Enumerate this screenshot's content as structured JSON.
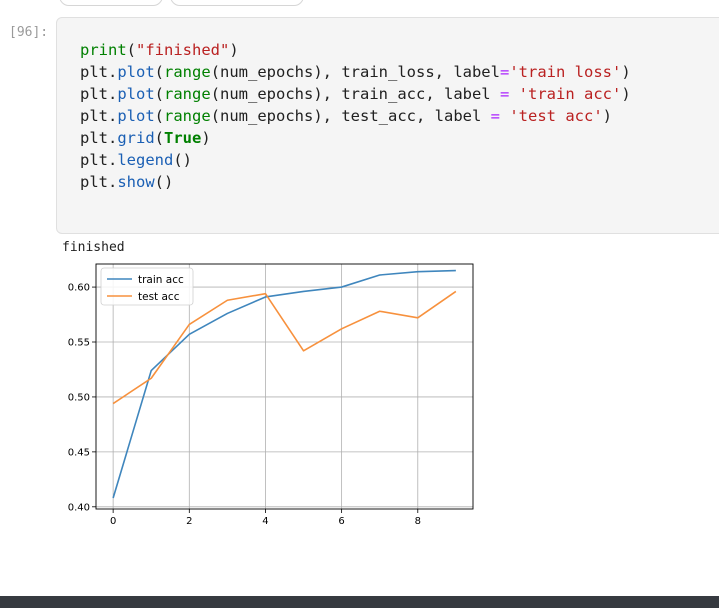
{
  "cell": {
    "prompt": "[96]:",
    "code_lines": [
      [
        {
          "t": "builtin",
          "v": "print"
        },
        {
          "t": "plain",
          "v": "("
        },
        {
          "t": "string",
          "v": "\"finished\""
        },
        {
          "t": "plain",
          "v": ")"
        }
      ],
      [
        {
          "t": "plain",
          "v": "plt"
        },
        {
          "t": "plain",
          "v": "."
        },
        {
          "t": "attr",
          "v": "plot"
        },
        {
          "t": "plain",
          "v": "("
        },
        {
          "t": "builtin",
          "v": "range"
        },
        {
          "t": "plain",
          "v": "(num_epochs), train_loss, label"
        },
        {
          "t": "op",
          "v": "="
        },
        {
          "t": "string",
          "v": "'train loss'"
        },
        {
          "t": "plain",
          "v": ")"
        }
      ],
      [
        {
          "t": "plain",
          "v": "plt"
        },
        {
          "t": "plain",
          "v": "."
        },
        {
          "t": "attr",
          "v": "plot"
        },
        {
          "t": "plain",
          "v": "("
        },
        {
          "t": "builtin",
          "v": "range"
        },
        {
          "t": "plain",
          "v": "(num_epochs), train_acc, label "
        },
        {
          "t": "op",
          "v": "="
        },
        {
          "t": "plain",
          "v": " "
        },
        {
          "t": "string",
          "v": "'train acc'"
        },
        {
          "t": "plain",
          "v": ")"
        }
      ],
      [
        {
          "t": "plain",
          "v": "plt"
        },
        {
          "t": "plain",
          "v": "."
        },
        {
          "t": "attr",
          "v": "plot"
        },
        {
          "t": "plain",
          "v": "("
        },
        {
          "t": "builtin",
          "v": "range"
        },
        {
          "t": "plain",
          "v": "(num_epochs), test_acc, label "
        },
        {
          "t": "op",
          "v": "="
        },
        {
          "t": "plain",
          "v": " "
        },
        {
          "t": "string",
          "v": "'test acc'"
        },
        {
          "t": "plain",
          "v": ")"
        }
      ],
      [
        {
          "t": "plain",
          "v": "plt"
        },
        {
          "t": "plain",
          "v": "."
        },
        {
          "t": "attr",
          "v": "grid"
        },
        {
          "t": "plain",
          "v": "("
        },
        {
          "t": "kw",
          "v": "True"
        },
        {
          "t": "plain",
          "v": ")"
        }
      ],
      [
        {
          "t": "plain",
          "v": "plt"
        },
        {
          "t": "plain",
          "v": "."
        },
        {
          "t": "attr",
          "v": "legend"
        },
        {
          "t": "plain",
          "v": "()"
        }
      ],
      [
        {
          "t": "plain",
          "v": "plt"
        },
        {
          "t": "plain",
          "v": "."
        },
        {
          "t": "attr",
          "v": "show"
        },
        {
          "t": "plain",
          "v": "()"
        }
      ]
    ]
  },
  "output": {
    "stdout": "finished"
  },
  "colors": {
    "train_acc": "#3f86bd",
    "test_acc": "#f7913d",
    "grid": "#b0b0b0",
    "builtin": "#008000",
    "string": "#ba2121",
    "operator": "#aa22ff"
  },
  "chart_data": {
    "type": "line",
    "title": "",
    "xlabel": "",
    "ylabel": "",
    "xlim": [
      -0.45,
      9.45
    ],
    "ylim": [
      0.398,
      0.621
    ],
    "xticks": [
      0,
      2,
      4,
      6,
      8
    ],
    "xtick_labels": [
      "0",
      "2",
      "4",
      "6",
      "8"
    ],
    "yticks": [
      0.4,
      0.45,
      0.5,
      0.55,
      0.6
    ],
    "ytick_labels": [
      "0.40",
      "0.45",
      "0.50",
      "0.55",
      "0.60"
    ],
    "grid": true,
    "legend": "top-left",
    "x": [
      0,
      1,
      2,
      3,
      4,
      5,
      6,
      7,
      8,
      9
    ],
    "series": [
      {
        "name": "train acc",
        "color": "#3f86bd",
        "values": [
          0.408,
          0.524,
          0.557,
          0.576,
          0.591,
          0.596,
          0.6,
          0.611,
          0.614,
          0.615
        ]
      },
      {
        "name": "test acc",
        "color": "#f7913d",
        "values": [
          0.494,
          0.517,
          0.566,
          0.588,
          0.594,
          0.542,
          0.562,
          0.578,
          0.572,
          0.596
        ]
      }
    ]
  }
}
